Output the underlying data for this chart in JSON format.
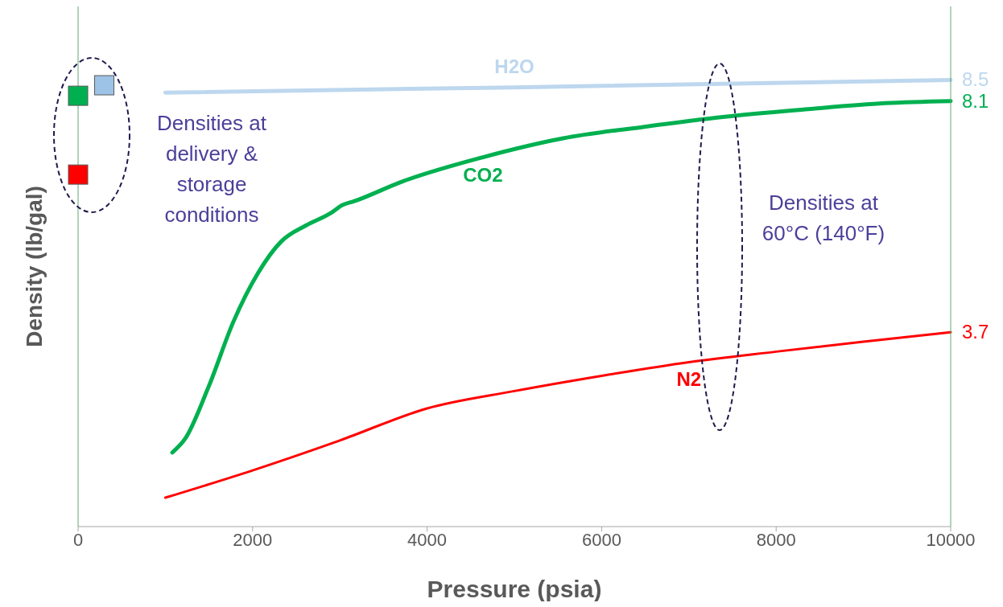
{
  "chart_data": {
    "type": "line",
    "xlabel": "Pressure (psia)",
    "ylabel": "Density (lb/gal)",
    "xlim": [
      0,
      10000
    ],
    "xticks": [
      0,
      2000,
      4000,
      6000,
      8000,
      10000
    ],
    "ylim": [
      0,
      9.9
    ],
    "tick_labels": "x",
    "marker": "none",
    "line_style": "solid",
    "series": [
      {
        "name": "H2O",
        "color": "#bdd7ee",
        "x": [
          1000,
          5000,
          10000
        ],
        "values": [
          8.26,
          8.36,
          8.5
        ],
        "value_labels": [
          null,
          null,
          "8.5"
        ]
      },
      {
        "name": "CO2",
        "color": "#00b050",
        "x": [
          1080,
          1230,
          1500,
          1780,
          2060,
          2330,
          2610,
          2890,
          3030,
          3160,
          3720,
          4640,
          5560,
          6490,
          7410,
          8330,
          9250,
          10000
        ],
        "values": [
          1.41,
          1.68,
          2.68,
          3.9,
          4.82,
          5.43,
          5.73,
          5.96,
          6.12,
          6.19,
          6.57,
          7.03,
          7.39,
          7.61,
          7.8,
          7.94,
          8.06,
          8.1
        ],
        "value_labels": [
          null,
          null,
          null,
          null,
          null,
          null,
          null,
          null,
          null,
          null,
          null,
          null,
          null,
          null,
          null,
          null,
          null,
          "8.1"
        ]
      },
      {
        "name": "N2",
        "color": "#ff0000",
        "x": [
          1000,
          2000,
          3000,
          4000,
          5000,
          6000,
          7000,
          8000,
          9000,
          10000
        ],
        "values": [
          0.55,
          1.07,
          1.64,
          2.25,
          2.58,
          2.87,
          3.13,
          3.33,
          3.52,
          3.7
        ],
        "value_labels": [
          null,
          null,
          null,
          null,
          null,
          null,
          null,
          null,
          null,
          "3.7"
        ]
      },
      {
        "type": "scatter",
        "marker": "square",
        "x": [
          0,
          0,
          300
        ],
        "values": [
          8.2,
          6.7,
          8.4
        ],
        "colors": [
          "#00b050",
          "#ff0000",
          "#9dc3e6"
        ]
      }
    ],
    "annotations": [
      "Densities at delivery & storage conditions",
      "Densities at 60°C (140°F)"
    ]
  }
}
